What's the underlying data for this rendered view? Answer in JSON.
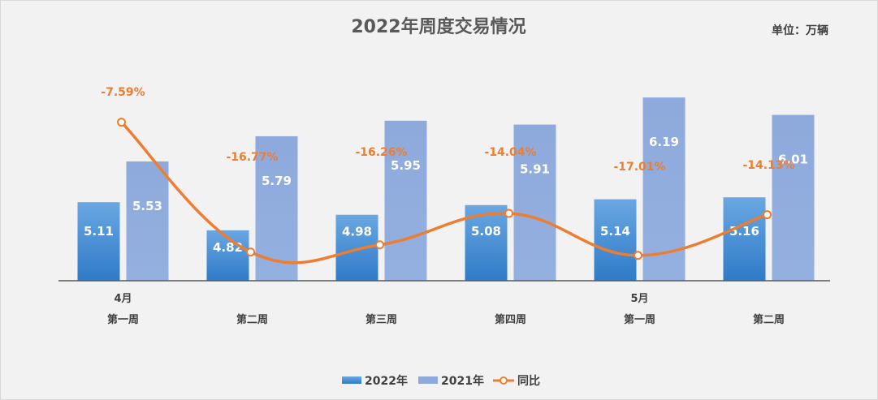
{
  "chart_data": {
    "type": "bar",
    "title": "2022年周度交易情况",
    "unit_label": "单位：万辆",
    "categories": [
      "第一周",
      "第二周",
      "第三周",
      "第四周",
      "第一周",
      "第二周"
    ],
    "month_labels": [
      "4月",
      "",
      "",
      "",
      "5月",
      ""
    ],
    "series": [
      {
        "name": "2022年",
        "values": [
          5.11,
          4.82,
          4.98,
          5.08,
          5.14,
          5.16
        ],
        "color": "#4a8fd6"
      },
      {
        "name": "2021年",
        "values": [
          5.53,
          5.79,
          5.95,
          5.91,
          6.19,
          6.01
        ],
        "color": "#8eaadc"
      }
    ],
    "line_series": {
      "name": "同比",
      "values": [
        -7.59,
        -16.77,
        -16.26,
        -14.04,
        -17.01,
        -14.13
      ],
      "labels": [
        "-7.59%",
        "-16.77%",
        "-16.26%",
        "-14.04%",
        "-17.01%",
        "-14.13%"
      ],
      "color": "#ed7d31"
    },
    "bar_ylim": [
      4.3,
      6.4
    ],
    "line_ylim": [
      -18.8,
      -4.4
    ],
    "legend": "bottom"
  }
}
